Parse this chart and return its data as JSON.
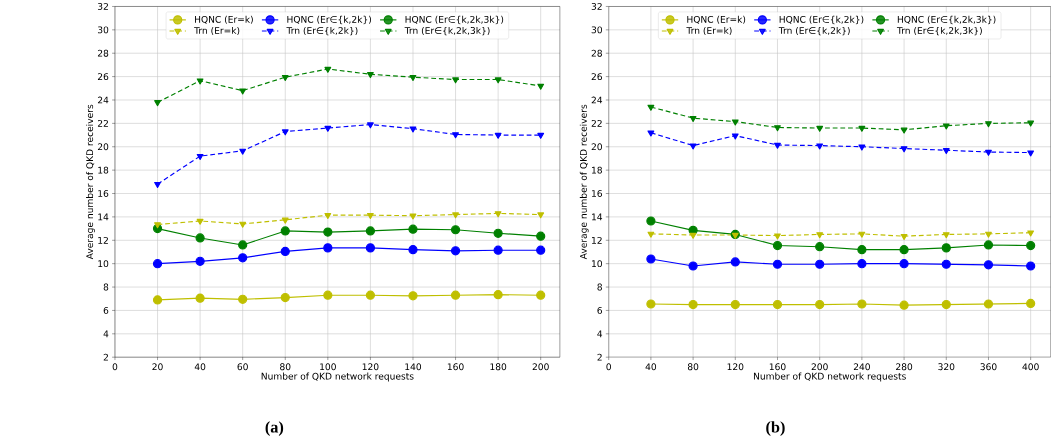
{
  "chart_data": [
    {
      "type": "line",
      "title": "(a)",
      "xlabel": "Number of QKD network requests",
      "ylabel": "Average number of QKD receivers",
      "x": [
        20,
        40,
        60,
        80,
        100,
        120,
        140,
        160,
        180,
        200
      ],
      "xlim": [
        0,
        209
      ],
      "xticks": [
        0,
        20,
        40,
        60,
        80,
        100,
        120,
        140,
        160,
        180,
        200
      ],
      "ylim": [
        2,
        32
      ],
      "yticks": [
        2,
        4,
        6,
        8,
        10,
        12,
        14,
        16,
        18,
        20,
        22,
        24,
        26,
        28,
        30,
        32
      ],
      "grid": true,
      "legend": "top",
      "series": [
        {
          "name": "HQNC (Er=k)",
          "color": "#bfbf00",
          "marker": "circle",
          "line_style": "solid",
          "values": [
            6.9,
            7.05,
            6.95,
            7.1,
            7.3,
            7.3,
            7.25,
            7.3,
            7.35,
            7.3
          ]
        },
        {
          "name": "HQNC (Er∈{k,2k})",
          "color": "#0000ff",
          "marker": "circle",
          "line_style": "solid",
          "values": [
            10.0,
            10.2,
            10.5,
            11.05,
            11.35,
            11.35,
            11.2,
            11.1,
            11.15,
            11.15
          ]
        },
        {
          "name": "HQNC (Er∈{k,2k,3k})",
          "color": "#008000",
          "marker": "circle",
          "line_style": "solid",
          "values": [
            13.0,
            12.2,
            11.6,
            12.8,
            12.7,
            12.8,
            12.95,
            12.9,
            12.6,
            12.35
          ]
        },
        {
          "name": "Trn (Er=k)",
          "color": "#bfbf00",
          "marker": "triangle",
          "line_style": "dashed",
          "values": [
            13.35,
            13.65,
            13.4,
            13.75,
            14.15,
            14.15,
            14.1,
            14.2,
            14.3,
            14.2
          ]
        },
        {
          "name": "Trn (Er∈{k,2k})",
          "color": "#0000ff",
          "marker": "triangle",
          "line_style": "dashed",
          "values": [
            16.8,
            19.2,
            19.65,
            21.3,
            21.6,
            21.9,
            21.55,
            21.05,
            21.0,
            21.0
          ]
        },
        {
          "name": "Trn (Er∈{k,2k,3k})",
          "color": "#008000",
          "marker": "triangle",
          "line_style": "dashed",
          "values": [
            23.8,
            25.65,
            24.8,
            25.95,
            26.65,
            26.2,
            25.95,
            25.75,
            25.75,
            25.2
          ]
        }
      ]
    },
    {
      "type": "line",
      "title": "(b)",
      "xlabel": "Number of QKD network requests",
      "ylabel": "Average number of QKD receivers",
      "x": [
        40,
        80,
        120,
        160,
        200,
        240,
        280,
        320,
        360,
        400
      ],
      "xlim": [
        0,
        419
      ],
      "xticks": [
        0,
        40,
        80,
        120,
        160,
        200,
        240,
        280,
        320,
        360,
        400
      ],
      "ylim": [
        2,
        32
      ],
      "yticks": [
        2,
        4,
        6,
        8,
        10,
        12,
        14,
        16,
        18,
        20,
        22,
        24,
        26,
        28,
        30,
        32
      ],
      "grid": true,
      "legend": "top",
      "series": [
        {
          "name": "HQNC (Er=k)",
          "color": "#bfbf00",
          "marker": "circle",
          "line_style": "solid",
          "values": [
            6.55,
            6.5,
            6.5,
            6.5,
            6.5,
            6.55,
            6.45,
            6.5,
            6.55,
            6.6
          ]
        },
        {
          "name": "HQNC (Er∈{k,2k})",
          "color": "#0000ff",
          "marker": "circle",
          "line_style": "solid",
          "values": [
            10.4,
            9.8,
            10.15,
            9.95,
            9.95,
            10.0,
            10.0,
            9.95,
            9.9,
            9.8
          ]
        },
        {
          "name": "HQNC (Er∈{k,2k,3k})",
          "color": "#008000",
          "marker": "circle",
          "line_style": "solid",
          "values": [
            13.65,
            12.85,
            12.5,
            11.55,
            11.45,
            11.2,
            11.2,
            11.35,
            11.6,
            11.55
          ]
        },
        {
          "name": "Trn (Er=k)",
          "color": "#bfbf00",
          "marker": "triangle",
          "line_style": "dashed",
          "values": [
            12.55,
            12.45,
            12.45,
            12.4,
            12.5,
            12.55,
            12.35,
            12.5,
            12.55,
            12.65
          ]
        },
        {
          "name": "Trn (Er∈{k,2k})",
          "color": "#0000ff",
          "marker": "triangle",
          "line_style": "dashed",
          "values": [
            21.2,
            20.1,
            20.95,
            20.15,
            20.1,
            20.0,
            19.85,
            19.7,
            19.55,
            19.5
          ]
        },
        {
          "name": "Trn (Er∈{k,2k,3k})",
          "color": "#008000",
          "marker": "triangle",
          "line_style": "dashed",
          "values": [
            23.4,
            22.45,
            22.15,
            21.65,
            21.6,
            21.6,
            21.45,
            21.8,
            22.0,
            22.05
          ]
        }
      ]
    }
  ]
}
